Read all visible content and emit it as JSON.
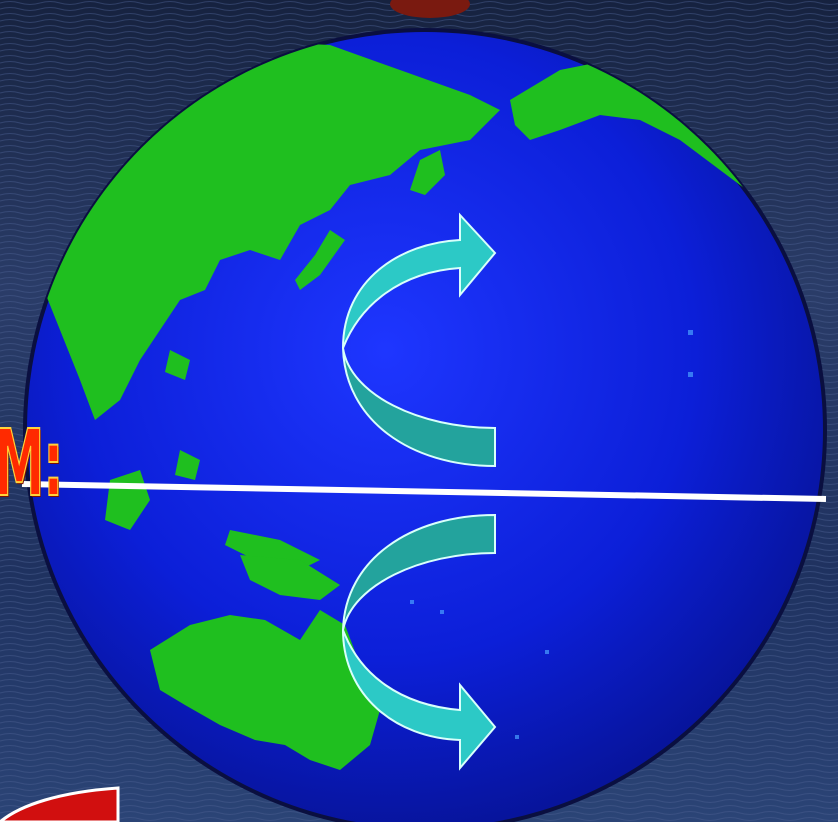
{
  "scene": {
    "subject": "rotating-globe-pacific-view",
    "colors": {
      "ocean": "#0a1ec8",
      "land": "#1fc21f",
      "sky_top": "#1b2b52",
      "sky_bottom": "#2a3f70",
      "arrow_fill": "#2cc9c6",
      "arrow_shade": "#23a39d",
      "equator": "#ffffff",
      "partial_label": "#ff2a00",
      "corner_shape": "#d10f0f"
    }
  },
  "edge_label": {
    "text": "M:"
  },
  "icons": {
    "upper": "curved-arrow-up-right-icon",
    "lower": "curved-arrow-down-right-icon"
  }
}
